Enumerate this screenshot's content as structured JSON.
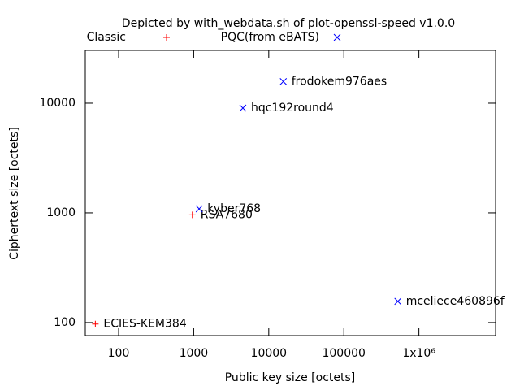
{
  "chart_data": {
    "type": "scatter",
    "title": "Depicted by with_webdata.sh of plot-openssl-speed v1.0.0",
    "x_label": "Public key size [octets]",
    "y_label": "Ciphertext size [octets]",
    "x_log": true,
    "y_log": true,
    "xlim": [
      36,
      10500000
    ],
    "ylim": [
      76,
      30300
    ],
    "xticks": [
      100,
      1000,
      10000,
      100000,
      {
        "value": 1000000,
        "label": "1x10⁶"
      }
    ],
    "yticks": [
      100,
      1000,
      10000
    ],
    "legend": "top",
    "series": [
      {
        "name": "Classic",
        "color": "#ff0000",
        "marker": "plus",
        "x": [
          49,
          960
        ],
        "values": [
          97,
          960
        ],
        "labels": [
          "ECIES-KEM384",
          "RSA7680"
        ]
      },
      {
        "name": "PQC(from eBATS)",
        "color": "#0000ff",
        "marker": "cross",
        "x": [
          1184,
          4522,
          15632,
          524160
        ],
        "values": [
          1088,
          9026,
          15744,
          156
        ],
        "labels": [
          "kyber768",
          "hqc192round4",
          "frodokem976aes",
          "mceliece460896f"
        ]
      }
    ]
  }
}
